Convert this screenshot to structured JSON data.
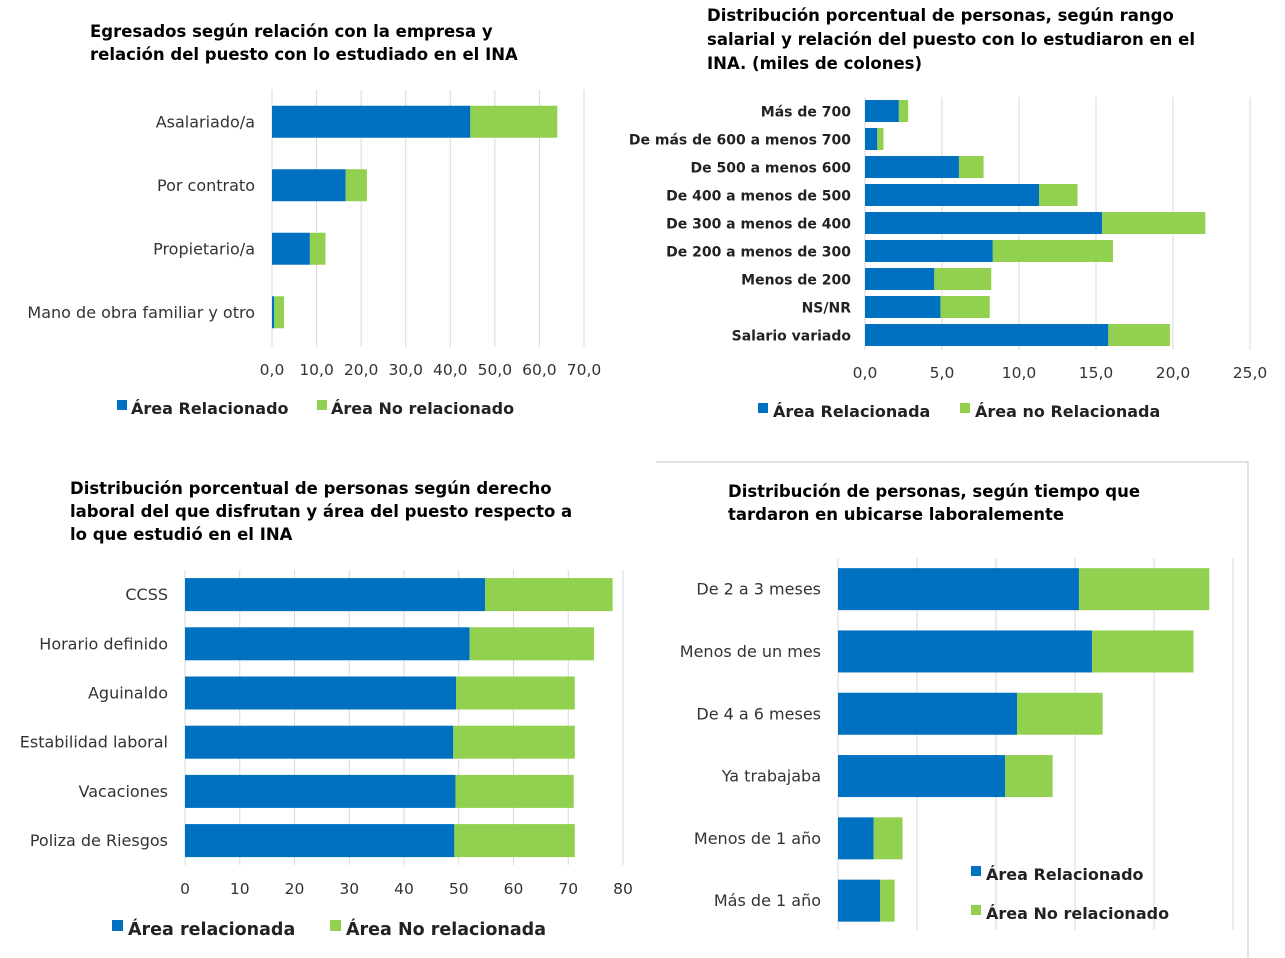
{
  "colors": {
    "related": "#0070c0",
    "not_related": "#92d050"
  },
  "chart_data": [
    {
      "type": "bar",
      "orientation": "horizontal",
      "stacked": true,
      "title": "Egresados según relación con la empresa y relación del puesto con lo estudiado en el INA",
      "title_lines": [
        "Egresados según relación con la empresa y",
        "relación del puesto con lo estudiado en el INA"
      ],
      "categories": [
        "Asalariado/a",
        "Por contrato",
        "Propietario/a",
        "Mano de obra familiar y otro"
      ],
      "series": [
        {
          "name": "Área Relacionado",
          "values": [
            44.5,
            16.5,
            8.5,
            0.5
          ]
        },
        {
          "name": "Área No relacionado",
          "values": [
            19.5,
            4.8,
            3.5,
            2.2
          ]
        }
      ],
      "xlim": [
        0,
        70
      ],
      "ticks": [
        "0,0",
        "10,0",
        "20,0",
        "30,0",
        "40,0",
        "50,0",
        "60,0",
        "70,0"
      ],
      "grid": true,
      "legend_position": "bottom"
    },
    {
      "type": "bar",
      "orientation": "horizontal",
      "stacked": true,
      "title": "Distribución porcentual de personas, según rango salarial y relación del puesto con lo estudiaron en el INA. (miles de colones)",
      "title_lines": [
        "Distribución porcentual de personas, según rango",
        "salarial y relación del puesto con lo estudiaron en el",
        "INA. (miles de colones)"
      ],
      "categories": [
        "Más de 700",
        "De más de  600 a menos 700",
        "De 500 a menos 600",
        "De 400 a menos de 500",
        "De  300 a menos de 400",
        "De 200 a menos de 300",
        "Menos de 200",
        "NS/NR",
        "Salario variado"
      ],
      "series": [
        {
          "name": "Área Relacionada",
          "values": [
            2.2,
            0.8,
            6.1,
            11.3,
            15.4,
            8.3,
            4.5,
            4.9,
            15.8
          ]
        },
        {
          "name": "Área no Relacionada",
          "values": [
            0.6,
            0.4,
            1.6,
            2.5,
            6.7,
            7.8,
            3.7,
            3.2,
            4.0
          ]
        }
      ],
      "xlim": [
        0,
        25
      ],
      "ticks": [
        "0,0",
        "5,0",
        "10,0",
        "15,0",
        "20,0",
        "25,0"
      ],
      "grid": true,
      "legend_position": "bottom"
    },
    {
      "type": "bar",
      "orientation": "horizontal",
      "stacked": true,
      "title": "Distribución porcentual de personas según derecho laboral del que disfrutan y área del puesto respecto a lo que estudió en el INA",
      "title_lines": [
        "Distribución porcentual de personas según derecho",
        "laboral del que disfrutan y área del puesto respecto a",
        "lo que estudió en el INA"
      ],
      "categories": [
        "CCSS",
        "Horario definido",
        "Aguinaldo",
        "Estabilidad laboral",
        "Vacaciones",
        "Poliza de Riesgos"
      ],
      "series": [
        {
          "name": "Área relacionada",
          "values": [
            54.8,
            52.0,
            49.5,
            49.0,
            49.4,
            49.2
          ]
        },
        {
          "name": "Área No relacionada",
          "values": [
            23.3,
            22.7,
            21.7,
            22.2,
            21.6,
            22.0
          ]
        }
      ],
      "xlim": [
        0,
        80
      ],
      "ticks": [
        "0",
        "10",
        "20",
        "30",
        "40",
        "50",
        "60",
        "70",
        "80"
      ],
      "grid": true,
      "legend_position": "bottom"
    },
    {
      "type": "bar",
      "orientation": "horizontal",
      "stacked": true,
      "title": "Distribución de personas, según tiempo que tardaron en ubicarse laboralemente",
      "title_lines": [
        "Distribución de personas, según tiempo que",
        "tardaron en ubicarse laboralemente"
      ],
      "categories": [
        "De 2 a 3 meses",
        "Menos de un mes",
        "De 4 a 6 meses",
        "Ya trabajaba",
        "Menos de 1 año",
        "Más de 1 año"
      ],
      "series": [
        {
          "name": "Área Relacionado",
          "values": [
            18.3,
            19.3,
            13.6,
            12.7,
            2.7,
            3.2
          ]
        },
        {
          "name": "Área No relacionado",
          "values": [
            9.9,
            7.7,
            6.5,
            3.6,
            2.2,
            1.1
          ]
        }
      ],
      "xlim": [
        0,
        30
      ],
      "grid": true,
      "legend_position": "right"
    }
  ]
}
